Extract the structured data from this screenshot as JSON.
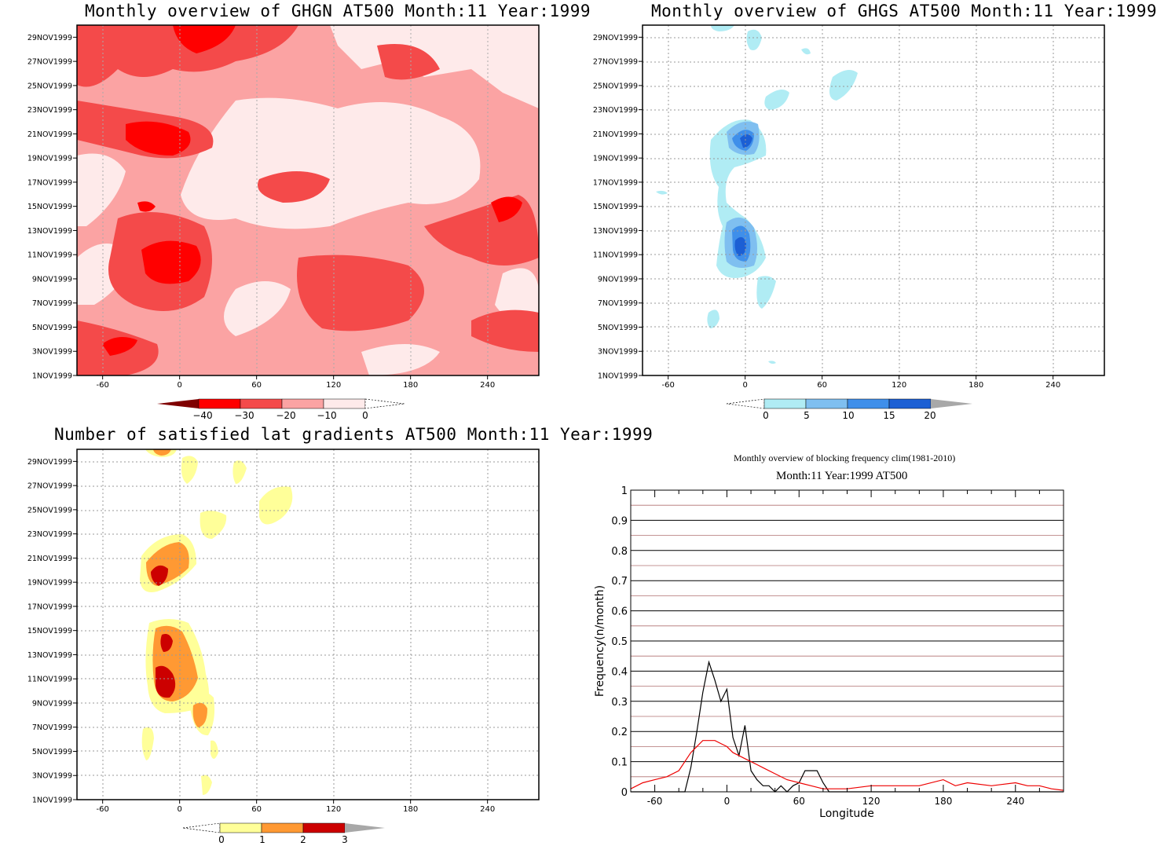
{
  "colors": {
    "red_scale": [
      "#7f0000",
      "#ff0000",
      "#f44a4a",
      "#fba3a3",
      "#feeaea"
    ],
    "blue_scale": [
      "#b0ecf4",
      "#7fbff0",
      "#3f8fea",
      "#1c5fd4"
    ],
    "ylw_scale": [
      "#ffff99",
      "#ff9933",
      "#cc0000"
    ],
    "line_black": "#000000",
    "line_red": "#ee0000",
    "overflow_gray": "#a8a8a8"
  },
  "panels": {
    "ghgn": {
      "title": "Monthly overview of GHGN AT500 Month:11 Year:1999",
      "colorbar_labels": [
        "−40",
        "−30",
        "−20",
        "−10",
        "0"
      ]
    },
    "ghgs": {
      "title": "Monthly overview of GHGS AT500 Month:11 Year:1999",
      "colorbar_labels": [
        "0",
        "5",
        "10",
        "15",
        "20"
      ]
    },
    "latgrad": {
      "title": "Number of satisfied lat gradients AT500 Month:11 Year:1999",
      "colorbar_labels": [
        "0",
        "1",
        "2",
        "3"
      ]
    },
    "blocking": {
      "title": "Monthly overview of blocking frequency clim(1981-2010)",
      "subtitle": "Month:11 Year:1999  AT500",
      "xlabel": "Longitude",
      "ylabel": "Frequency(n/month)"
    }
  },
  "axes": {
    "date_ticks": [
      "1NOV1999",
      "3NOV1999",
      "5NOV1999",
      "7NOV1999",
      "9NOV1999",
      "11NOV1999",
      "13NOV1999",
      "15NOV1999",
      "17NOV1999",
      "19NOV1999",
      "21NOV1999",
      "23NOV1999",
      "25NOV1999",
      "27NOV1999",
      "29NOV1999"
    ],
    "lon_ticks": [
      "-60",
      "0",
      "60",
      "120",
      "180",
      "240"
    ],
    "freq_ticks": [
      "0",
      "0.1",
      "0.2",
      "0.3",
      "0.4",
      "0.5",
      "0.6",
      "0.7",
      "0.8",
      "0.9",
      "1"
    ]
  },
  "chart_data": [
    {
      "type": "heatmap",
      "title": "Monthly overview of GHGN AT500 Month:11 Year:1999",
      "x_range": [
        -80,
        280
      ],
      "y_range": [
        "1NOV1999",
        "30NOV1999"
      ],
      "levels": [
        -40,
        -30,
        -20,
        -10,
        0
      ],
      "field": "GHGN"
    },
    {
      "type": "heatmap",
      "title": "Monthly overview of GHGS AT500 Month:11 Year:1999",
      "x_range": [
        -80,
        280
      ],
      "y_range": [
        "1NOV1999",
        "30NOV1999"
      ],
      "levels": [
        0,
        5,
        10,
        15,
        20
      ],
      "field": "GHGS"
    },
    {
      "type": "heatmap",
      "title": "Number of satisfied lat gradients AT500 Month:11 Year:1999",
      "x_range": [
        -80,
        280
      ],
      "y_range": [
        "1NOV1999",
        "30NOV1999"
      ],
      "levels": [
        0,
        1,
        2,
        3
      ],
      "field": "lat gradients"
    },
    {
      "type": "line",
      "title": "Monthly overview of blocking frequency clim(1981-2010)",
      "subtitle": "Month:11 Year:1999  AT500",
      "xlabel": "Longitude",
      "ylabel": "Frequency(n/month)",
      "xlim": [
        -80,
        280
      ],
      "ylim": [
        0,
        1
      ],
      "grid": true,
      "series": [
        {
          "color": "#000000",
          "x": [
            -80,
            -35,
            -30,
            -25,
            -20,
            -15,
            -10,
            -5,
            0,
            5,
            10,
            15,
            20,
            25,
            30,
            35,
            40,
            45,
            50,
            55,
            60,
            65,
            70,
            75,
            80,
            85,
            280
          ],
          "y": [
            0,
            0,
            0.08,
            0.2,
            0.33,
            0.43,
            0.37,
            0.3,
            0.34,
            0.18,
            0.12,
            0.22,
            0.07,
            0.04,
            0.02,
            0.02,
            0,
            0.02,
            0,
            0.02,
            0.03,
            0.07,
            0.07,
            0.07,
            0.03,
            0,
            0
          ]
        },
        {
          "color": "#ee0000",
          "x": [
            -80,
            -70,
            -60,
            -50,
            -40,
            -35,
            -30,
            -25,
            -20,
            -15,
            -10,
            -5,
            0,
            5,
            10,
            15,
            20,
            25,
            30,
            40,
            50,
            60,
            70,
            80,
            90,
            100,
            120,
            140,
            160,
            180,
            190,
            200,
            220,
            240,
            250,
            260,
            270,
            280
          ],
          "y": [
            0.01,
            0.03,
            0.04,
            0.05,
            0.07,
            0.1,
            0.13,
            0.15,
            0.17,
            0.17,
            0.17,
            0.16,
            0.15,
            0.13,
            0.12,
            0.11,
            0.1,
            0.09,
            0.08,
            0.06,
            0.04,
            0.03,
            0.02,
            0.01,
            0.01,
            0.01,
            0.02,
            0.02,
            0.02,
            0.04,
            0.02,
            0.03,
            0.02,
            0.03,
            0.02,
            0.02,
            0.01,
            0.005
          ]
        }
      ]
    }
  ]
}
